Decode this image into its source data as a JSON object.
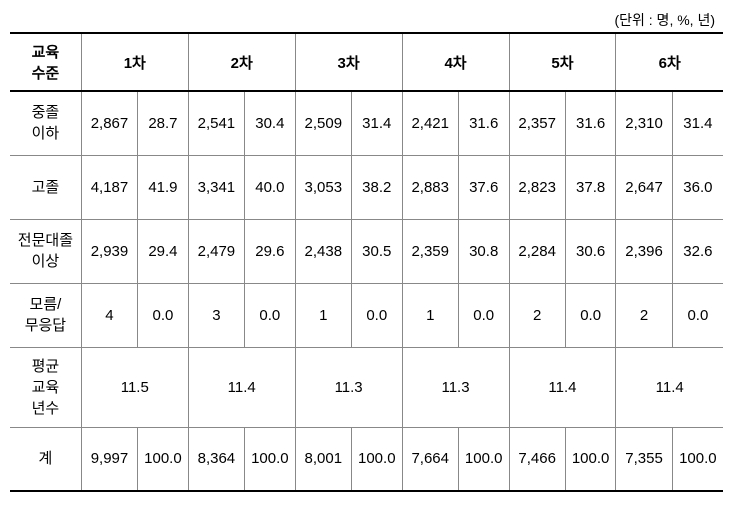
{
  "unit_note": "(단위 : 명, %, 년)",
  "header": {
    "row_label": "교육\n수준",
    "waves": [
      "1차",
      "2차",
      "3차",
      "4차",
      "5차",
      "6차"
    ]
  },
  "rows": [
    {
      "label": "중졸\n이하",
      "cells": [
        "2,867",
        "28.7",
        "2,541",
        "30.4",
        "2,509",
        "31.4",
        "2,421",
        "31.6",
        "2,357",
        "31.6",
        "2,310",
        "31.4"
      ]
    },
    {
      "label": "고졸",
      "cells": [
        "4,187",
        "41.9",
        "3,341",
        "40.0",
        "3,053",
        "38.2",
        "2,883",
        "37.6",
        "2,823",
        "37.8",
        "2,647",
        "36.0"
      ]
    },
    {
      "label": "전문대졸\n이상",
      "cells": [
        "2,939",
        "29.4",
        "2,479",
        "29.6",
        "2,438",
        "30.5",
        "2,359",
        "30.8",
        "2,284",
        "30.6",
        "2,396",
        "32.6"
      ]
    },
    {
      "label": "모름/\n무응답",
      "cells": [
        "4",
        "0.0",
        "3",
        "0.0",
        "1",
        "0.0",
        "1",
        "0.0",
        "2",
        "0.0",
        "2",
        "0.0"
      ]
    }
  ],
  "avg_row": {
    "label": "평균\n교육\n년수",
    "values": [
      "11.5",
      "11.4",
      "11.3",
      "11.3",
      "11.4",
      "11.4"
    ]
  },
  "total_row": {
    "label": "계",
    "cells": [
      "9,997",
      "100.0",
      "8,364",
      "100.0",
      "8,001",
      "100.0",
      "7,664",
      "100.0",
      "7,466",
      "100.0",
      "7,355",
      "100.0"
    ]
  }
}
